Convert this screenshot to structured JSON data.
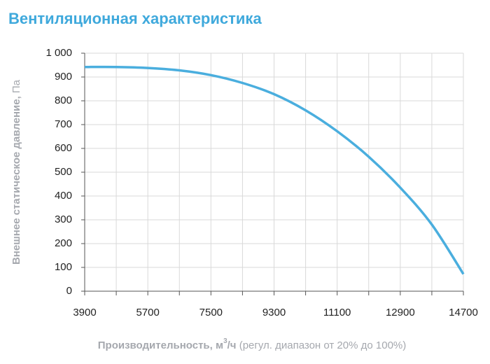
{
  "chart_data": {
    "type": "line",
    "title": "Вентиляционная характеристика",
    "y_label": {
      "main": "Внешнее статическое давление,",
      "unit": "Па"
    },
    "x_label": {
      "main": "Производительность, м",
      "sup": "3",
      "unit": "/ч",
      "note": "(регул. диапазон от 20% до 100%)"
    },
    "x": [
      3900,
      4800,
      5700,
      6600,
      7500,
      8400,
      9300,
      10200,
      11100,
      12000,
      12900,
      13800,
      14700
    ],
    "values": [
      942,
      942,
      938,
      928,
      908,
      875,
      828,
      760,
      672,
      565,
      435,
      280,
      72
    ],
    "color": "#4aaede",
    "xlim": [
      3900,
      14700
    ],
    "xticks": [
      3900,
      5700,
      7500,
      9300,
      11100,
      12900,
      14700
    ],
    "x_minor_ticks": [
      4800,
      6600,
      8400,
      10200,
      12000,
      13800
    ],
    "ylim": [
      0,
      1000
    ],
    "yticks": [
      0,
      100,
      200,
      300,
      400,
      500,
      600,
      700,
      800,
      900,
      {
        "value": 1000,
        "label": "1 000"
      }
    ],
    "grid": true
  }
}
